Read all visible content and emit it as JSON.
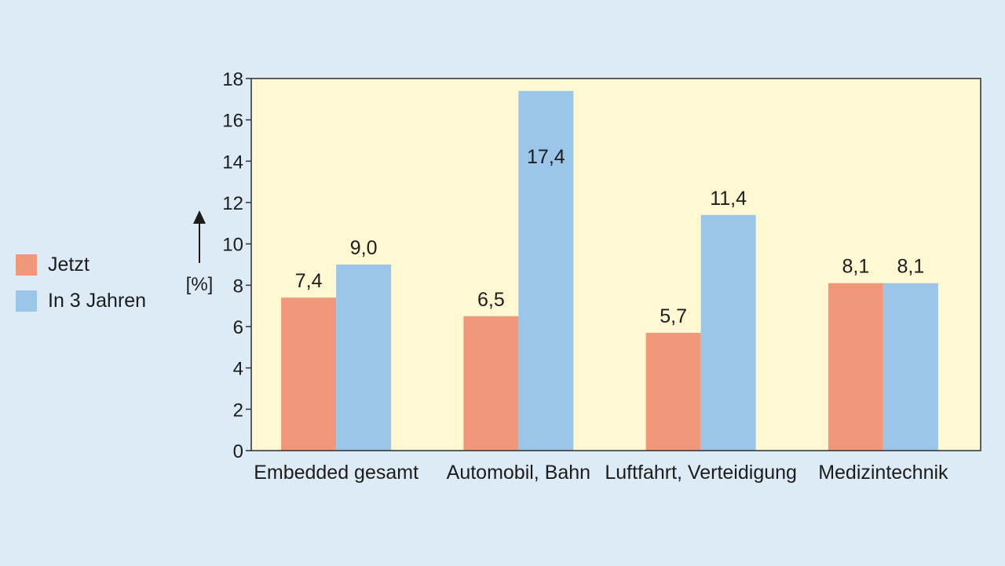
{
  "chart_data": {
    "type": "bar",
    "title": "",
    "xlabel": "",
    "ylabel": "[%]",
    "ylim": [
      0,
      18
    ],
    "yticks": [
      0,
      2,
      4,
      6,
      8,
      10,
      12,
      14,
      16,
      18
    ],
    "grid": false,
    "legend_position": "left",
    "categories": [
      "Embedded gesamt",
      "Automobil, Bahn",
      "Luftfahrt, Verteidigung",
      "Medizintechnik"
    ],
    "series": [
      {
        "name": "Jetzt",
        "color": "#f2987a",
        "values": [
          7.4,
          6.5,
          5.7,
          8.1
        ],
        "labels": [
          "7,4",
          "6,5",
          "5,7",
          "8,1"
        ]
      },
      {
        "name": "In 3 Jahren",
        "color": "#9cc5ea",
        "values": [
          9.0,
          17.4,
          11.4,
          8.1
        ],
        "labels": [
          "9,0",
          "17,4",
          "11,4",
          "8,1"
        ]
      }
    ],
    "plot_background": "#fff8d2"
  }
}
